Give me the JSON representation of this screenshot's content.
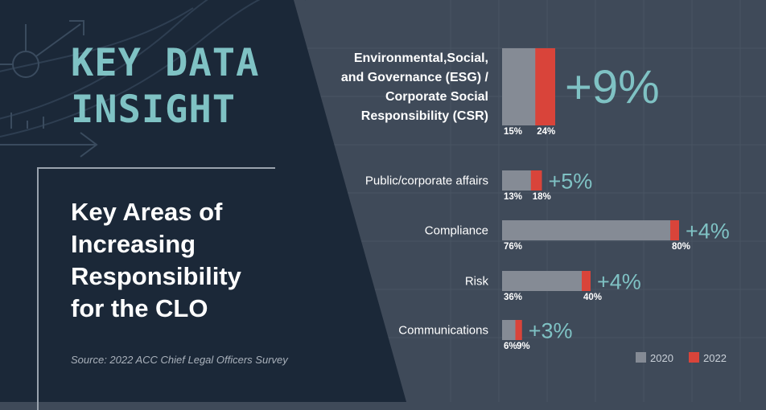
{
  "header": {
    "kicker_lines": [
      "KEY DATA",
      "INSIGHT"
    ],
    "subtitle_lines": [
      "Key Areas of",
      "Increasing",
      "Responsibility",
      "for the CLO"
    ],
    "source": "Source: 2022 ACC Chief Legal Officers Survey"
  },
  "colors": {
    "series_2020": "#858b95",
    "series_2022": "#d9443a",
    "accent": "#7fc2c4",
    "panel_left": "#1b2838",
    "panel_right": "#3f4a59"
  },
  "chart_data": {
    "type": "bar",
    "orientation": "horizontal",
    "categories": [
      "Environmental,Social, and Governance (ESG) / Corporate Social Responsibility (CSR)",
      "Public/corporate affairs",
      "Compliance",
      "Risk",
      "Communications"
    ],
    "category_lines": [
      [
        "Environmental,Social,",
        "and Governance (ESG) /",
        "Corporate Social",
        "Responsibility (CSR)"
      ],
      [
        "Public/corporate affairs"
      ],
      [
        "Compliance"
      ],
      [
        "Risk"
      ],
      [
        "Communications"
      ]
    ],
    "series": [
      {
        "name": "2020",
        "values": [
          15,
          13,
          76,
          36,
          6
        ],
        "labels": [
          "15%",
          "13%",
          "76%",
          "36%",
          "6%"
        ]
      },
      {
        "name": "2022",
        "values": [
          24,
          18,
          80,
          40,
          9
        ],
        "labels": [
          "24%",
          "18%",
          "80%",
          "40%",
          "9%"
        ]
      }
    ],
    "differences": [
      "+9%",
      "+5%",
      "+4%",
      "+4%",
      "+3%"
    ],
    "xlim": [
      0,
      100
    ],
    "legend": {
      "position": "bottom-right",
      "entries": [
        "2020",
        "2022"
      ]
    },
    "grid": false
  }
}
